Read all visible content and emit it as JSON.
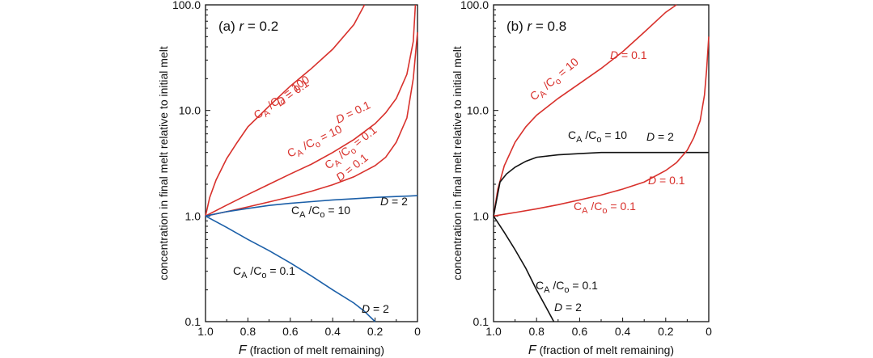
{
  "chart_data": [
    {
      "type": "line",
      "panel_label": "(a)",
      "panel_param": "r = 0.2",
      "ylabel": "concentration in final melt relative to initial melt",
      "xlabel": "F (fraction of melt remaining)",
      "xlim": [
        1.0,
        0.0
      ],
      "ylim": [
        0.1,
        100.0
      ],
      "yscale": "log",
      "xticks": [
        "1.0",
        "0.8",
        "0.6",
        "0.4",
        "0.2",
        "0"
      ],
      "yticks": [
        "0.1",
        "1.0",
        "10.0",
        "100.0"
      ],
      "series": [
        {
          "name": "CA/Co = 100, D = 0.1",
          "color": "#d8312c",
          "x": [
            1.0,
            0.98,
            0.95,
            0.9,
            0.85,
            0.8,
            0.7,
            0.6,
            0.5,
            0.4,
            0.3,
            0.25
          ],
          "y": [
            1.0,
            1.5,
            2.2,
            3.5,
            5.0,
            7.0,
            11,
            17,
            25,
            38,
            65,
            100
          ]
        },
        {
          "name": "CA/Co = 10, D = 0.1",
          "color": "#d8312c",
          "x": [
            1.0,
            0.9,
            0.8,
            0.7,
            0.6,
            0.5,
            0.4,
            0.3,
            0.2,
            0.15,
            0.1,
            0.05,
            0.02,
            0.01
          ],
          "y": [
            1.0,
            1.27,
            1.6,
            2.0,
            2.5,
            3.1,
            4.0,
            5.3,
            7.5,
            9.5,
            13,
            22,
            45,
            100
          ]
        },
        {
          "name": "CA/Co = 0.1, D = 0.1",
          "color": "#d8312c",
          "x": [
            1.0,
            0.9,
            0.8,
            0.7,
            0.6,
            0.5,
            0.4,
            0.3,
            0.2,
            0.15,
            0.1,
            0.05,
            0.02,
            0.0
          ],
          "y": [
            1.0,
            1.1,
            1.22,
            1.36,
            1.52,
            1.72,
            1.98,
            2.35,
            3.0,
            3.6,
            5.0,
            8.5,
            20,
            55
          ]
        },
        {
          "name": "CA/Co = 10, D = 2",
          "color": "#1b5fa8",
          "x": [
            1.0,
            0.9,
            0.8,
            0.7,
            0.6,
            0.5,
            0.4,
            0.3,
            0.2,
            0.1,
            0.0
          ],
          "y": [
            1.0,
            1.1,
            1.18,
            1.26,
            1.32,
            1.37,
            1.42,
            1.46,
            1.5,
            1.53,
            1.56
          ]
        },
        {
          "name": "CA/Co = 0.1, D = 2",
          "color": "#1b5fa8",
          "x": [
            1.0,
            0.9,
            0.8,
            0.7,
            0.6,
            0.5,
            0.4,
            0.3,
            0.25,
            0.2
          ],
          "y": [
            1.0,
            0.78,
            0.6,
            0.47,
            0.36,
            0.27,
            0.2,
            0.15,
            0.125,
            0.1
          ]
        }
      ],
      "annotations": [
        {
          "text": "CA /Co = 100",
          "color": "#d8312c"
        },
        {
          "text": "D = 0.1",
          "color": "#d8312c"
        },
        {
          "text": "CA /Co = 10",
          "color": "#d8312c"
        },
        {
          "text": "D = 0.1",
          "color": "#d8312c"
        },
        {
          "text": "CA /Co = 0.1",
          "color": "#d8312c"
        },
        {
          "text": "D = 0.1",
          "color": "#d8312c"
        },
        {
          "text": "CA /Co = 10",
          "color": "#111111"
        },
        {
          "text": "D = 2",
          "color": "#111111"
        },
        {
          "text": "CA /Co = 0.1",
          "color": "#111111"
        },
        {
          "text": "D = 2",
          "color": "#111111"
        }
      ]
    },
    {
      "type": "line",
      "panel_label": "(b)",
      "panel_param": "r = 0.8",
      "ylabel": "concentration in final melt relative to initial melt",
      "xlabel": "F (fraction of melt remaining)",
      "xlim": [
        1.0,
        0.0
      ],
      "ylim": [
        0.1,
        100.0
      ],
      "yscale": "log",
      "xticks": [
        "1.0",
        "0.8",
        "0.6",
        "0.4",
        "0.2",
        "0"
      ],
      "yticks": [
        "0.1",
        "1.0",
        "10.0",
        "100.0"
      ],
      "series": [
        {
          "name": "CA/Co = 10, D = 0.1",
          "color": "#d8312c",
          "x": [
            1.0,
            0.98,
            0.95,
            0.9,
            0.85,
            0.8,
            0.7,
            0.6,
            0.5,
            0.4,
            0.3,
            0.2,
            0.15
          ],
          "y": [
            1.0,
            1.8,
            3.0,
            5.0,
            7.0,
            9.0,
            13,
            18,
            25,
            36,
            55,
            85,
            100
          ]
        },
        {
          "name": "CA/Co = 10, D = 2",
          "color": "#111111",
          "x": [
            1.0,
            0.97,
            0.94,
            0.9,
            0.85,
            0.8,
            0.7,
            0.6,
            0.5,
            0.4,
            0.3,
            0.2,
            0.1,
            0.0
          ],
          "y": [
            1.0,
            2.1,
            2.5,
            2.9,
            3.3,
            3.6,
            3.8,
            3.9,
            4.0,
            4.0,
            4.0,
            4.0,
            4.0,
            4.0
          ]
        },
        {
          "name": "CA/Co = 0.1, D = 0.1",
          "color": "#d8312c",
          "x": [
            1.0,
            0.9,
            0.8,
            0.7,
            0.6,
            0.5,
            0.4,
            0.3,
            0.2,
            0.15,
            0.1,
            0.07,
            0.04,
            0.02,
            0.01,
            0.0
          ],
          "y": [
            1.0,
            1.08,
            1.17,
            1.28,
            1.42,
            1.58,
            1.8,
            2.1,
            2.7,
            3.2,
            4.2,
            5.5,
            8.0,
            14,
            24,
            50
          ]
        },
        {
          "name": "CA/Co = 0.1, D = 2",
          "color": "#111111",
          "x": [
            1.0,
            0.95,
            0.9,
            0.85,
            0.8,
            0.75,
            0.72
          ],
          "y": [
            1.0,
            0.7,
            0.48,
            0.32,
            0.2,
            0.13,
            0.1
          ]
        }
      ],
      "annotations": [
        {
          "text": "CA /Co = 10",
          "color": "#d8312c"
        },
        {
          "text": "D = 0.1",
          "color": "#d8312c"
        },
        {
          "text": "CA /Co = 10",
          "color": "#111111"
        },
        {
          "text": "D = 2",
          "color": "#111111"
        },
        {
          "text": "D = 0.1",
          "color": "#d8312c"
        },
        {
          "text": "CA /Co = 0.1",
          "color": "#d8312c"
        },
        {
          "text": "CA /Co = 0.1",
          "color": "#111111"
        },
        {
          "text": "D = 2",
          "color": "#111111"
        }
      ]
    }
  ]
}
